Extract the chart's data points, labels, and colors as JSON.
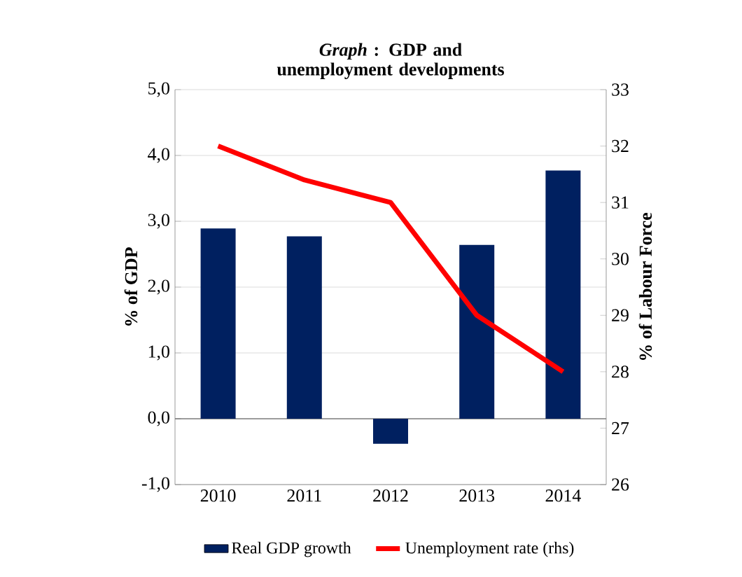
{
  "chart_data": {
    "type": "bar",
    "title": "*Graph* : GDP and unemployment developments",
    "categories": [
      "2010",
      "2011",
      "2012",
      "2013",
      "2014"
    ],
    "series": [
      {
        "name": "Real GDP growth",
        "color": "#002060",
        "values": [
          2.89,
          2.77,
          -0.38,
          2.64,
          3.77
        ]
      },
      {
        "name": "Unemployment rate (rhs)",
        "type": "line",
        "axis": "y2",
        "color": "#ff0000",
        "values": [
          32.0,
          31.4,
          31.0,
          29.0,
          28.0
        ]
      }
    ],
    "ylabel": "% of GDP",
    "y2label": "% of Labour Force",
    "ylim": [
      -1,
      5
    ],
    "yticks": [
      {
        "value": -1,
        "label": "-1,0"
      },
      {
        "value": 0,
        "label": "0,0"
      },
      {
        "value": 1,
        "label": "1,0"
      },
      {
        "value": 2,
        "label": "2,0"
      },
      {
        "value": 3,
        "label": "3,0"
      },
      {
        "value": 4,
        "label": "4,0"
      },
      {
        "value": 5,
        "label": "5,0"
      }
    ],
    "y2lim": [
      26,
      33
    ],
    "y2ticks": [
      26,
      27,
      28,
      29,
      30,
      31,
      32,
      33
    ],
    "grid": "y",
    "legend": "bottom",
    "marker": "none",
    "line_style": "solid"
  }
}
